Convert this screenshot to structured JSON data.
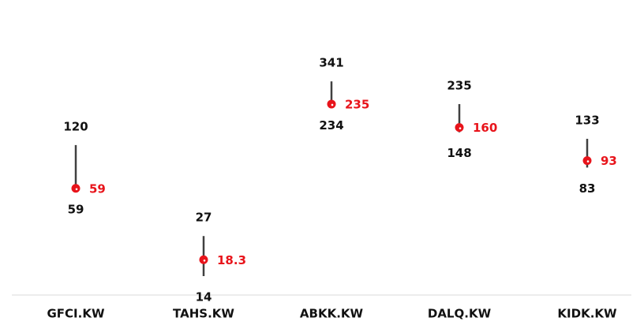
{
  "chart_data": {
    "type": "highlow",
    "log_scale": true,
    "ylim": [
      10,
      1000
    ],
    "categories": [
      "GFCI.KW",
      "TAHS.KW",
      "ABKK.KW",
      "DALQ.KW",
      "KIDK.KW"
    ],
    "high": [
      120,
      27,
      341,
      235,
      133
    ],
    "low": [
      59,
      14,
      234,
      148,
      83
    ],
    "current": [
      59,
      18.3,
      235,
      160,
      93
    ],
    "line_color": "#404040",
    "marker_color": "#e8141b"
  }
}
